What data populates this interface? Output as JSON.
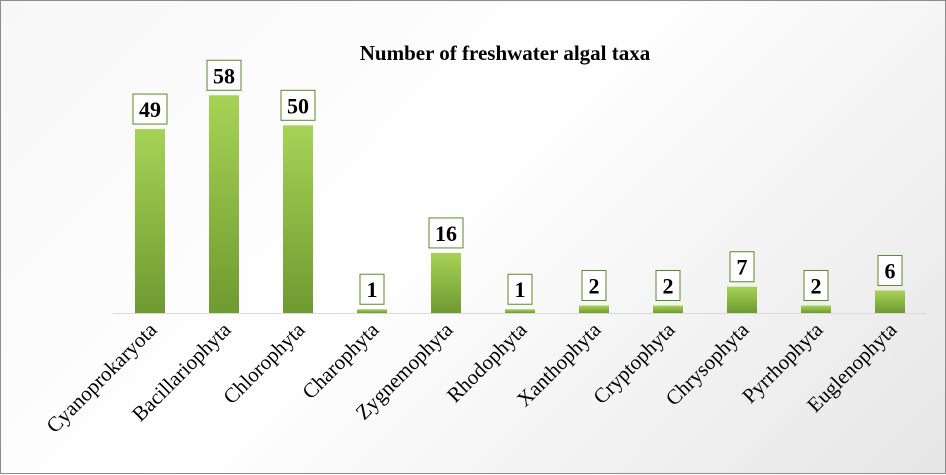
{
  "chart_data": {
    "type": "bar",
    "title": "Number of freshwater algal taxa",
    "categories": [
      "Cyanoprokaryota",
      "Bacillariophyta",
      "Chlorophyta",
      "Charophyta",
      "Zygnemophyta",
      "Rhodophyta",
      "Xanthophyta",
      "Cryptophyta",
      "Chrysophyta",
      "Pyrrhophyta",
      "Euglenophyta"
    ],
    "values": [
      49,
      58,
      50,
      1,
      16,
      1,
      2,
      2,
      7,
      2,
      6
    ],
    "xlabel": "",
    "ylabel": "",
    "ylim": [
      0,
      65
    ],
    "grid": false,
    "legend": "none",
    "data_labels": true,
    "colors": {
      "bar_top": "#a6d356",
      "bar_bottom": "#6f9a30",
      "label_border": "#5a8a2a",
      "axis": "#d9d9d9"
    }
  }
}
